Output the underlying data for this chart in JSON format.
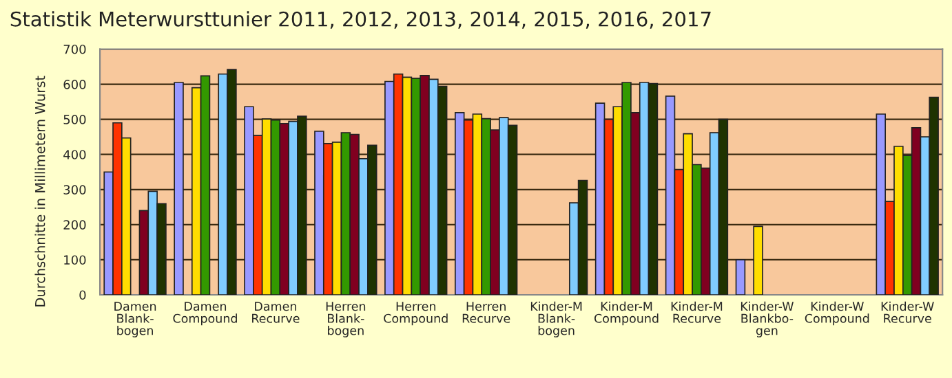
{
  "chart_data": {
    "type": "bar",
    "title": "Statistik Meterwursttunier 2011, 2012, 2013, 2014, 2015, 2016, 2017",
    "ylabel": "Durchschnitte in Millimetern Wurst",
    "categories": [
      "Damen\nBlank-\nbogen",
      "Damen\nCompound",
      "Damen\nRecurve",
      "Herren\nBlank-\nbogen",
      "Herren\nCompound",
      "Herren\nRecurve",
      "Kinder-M\nBlank-\nbogen",
      "Kinder-M\nCompound",
      "Kinder-M\nRecurve",
      "Kinder-W\nBlankbo-\ngen",
      "Kinder-W\nCompound",
      "Kinder-W\nRecurve"
    ],
    "series": [
      {
        "color": "#9999ff",
        "values": [
          350,
          605,
          536,
          466,
          608,
          519,
          null,
          546,
          566,
          100,
          null,
          515
        ]
      },
      {
        "color": "#ff3300",
        "values": [
          490,
          null,
          454,
          431,
          629,
          498,
          null,
          500,
          357,
          null,
          null,
          266
        ]
      },
      {
        "color": "#ffdd00",
        "values": [
          447,
          590,
          501,
          435,
          620,
          515,
          null,
          536,
          459,
          195,
          null,
          423
        ]
      },
      {
        "color": "#339900",
        "values": [
          null,
          624,
          498,
          462,
          617,
          502,
          null,
          605,
          371,
          null,
          null,
          397
        ]
      },
      {
        "color": "#800020",
        "values": [
          240,
          null,
          488,
          457,
          625,
          470,
          null,
          519,
          361,
          null,
          null,
          476
        ]
      },
      {
        "color": "#80ccff",
        "values": [
          295,
          629,
          494,
          388,
          614,
          505,
          262,
          605,
          462,
          null,
          null,
          450
        ]
      },
      {
        "color": "#1f3300",
        "values": [
          260,
          642,
          509,
          426,
          594,
          483,
          326,
          602,
          500,
          null,
          null,
          563
        ]
      }
    ],
    "ylim": [
      0,
      700
    ],
    "yticks": [
      0,
      100,
      200,
      300,
      400,
      500,
      600,
      700
    ],
    "grid": "y",
    "legend": false
  }
}
